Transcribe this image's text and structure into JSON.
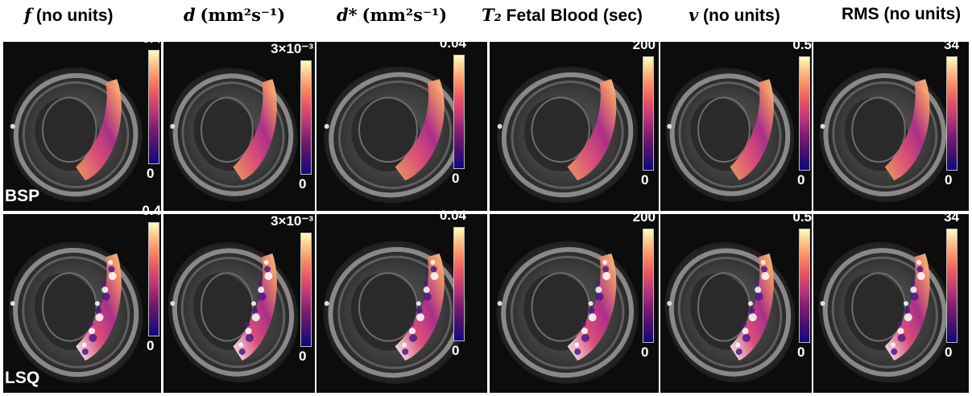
{
  "columns": [
    {
      "symbol": "f",
      "unit": "(no units)"
    },
    {
      "symbol": "d",
      "unit": "(mm²s⁻¹)"
    },
    {
      "symbol": "d*",
      "unit": "(mm²s⁻¹)"
    },
    {
      "symbol": "T₂",
      "unit": "Fetal Blood  (sec)"
    },
    {
      "symbol": "v",
      "unit": "(no units)"
    },
    {
      "symbol": "",
      "unit": "RMS (no units)"
    }
  ],
  "colorbar": {
    "colormap": "plasma-like (purple to yellow)",
    "max": [
      "0.4",
      "3×10⁻³",
      "0.04",
      "200",
      "0.5",
      "34"
    ],
    "min": [
      "0",
      "0",
      "0",
      "0",
      "0",
      "0"
    ]
  },
  "rows": [
    {
      "label": "BSP"
    },
    {
      "label": "LSQ"
    }
  ]
}
